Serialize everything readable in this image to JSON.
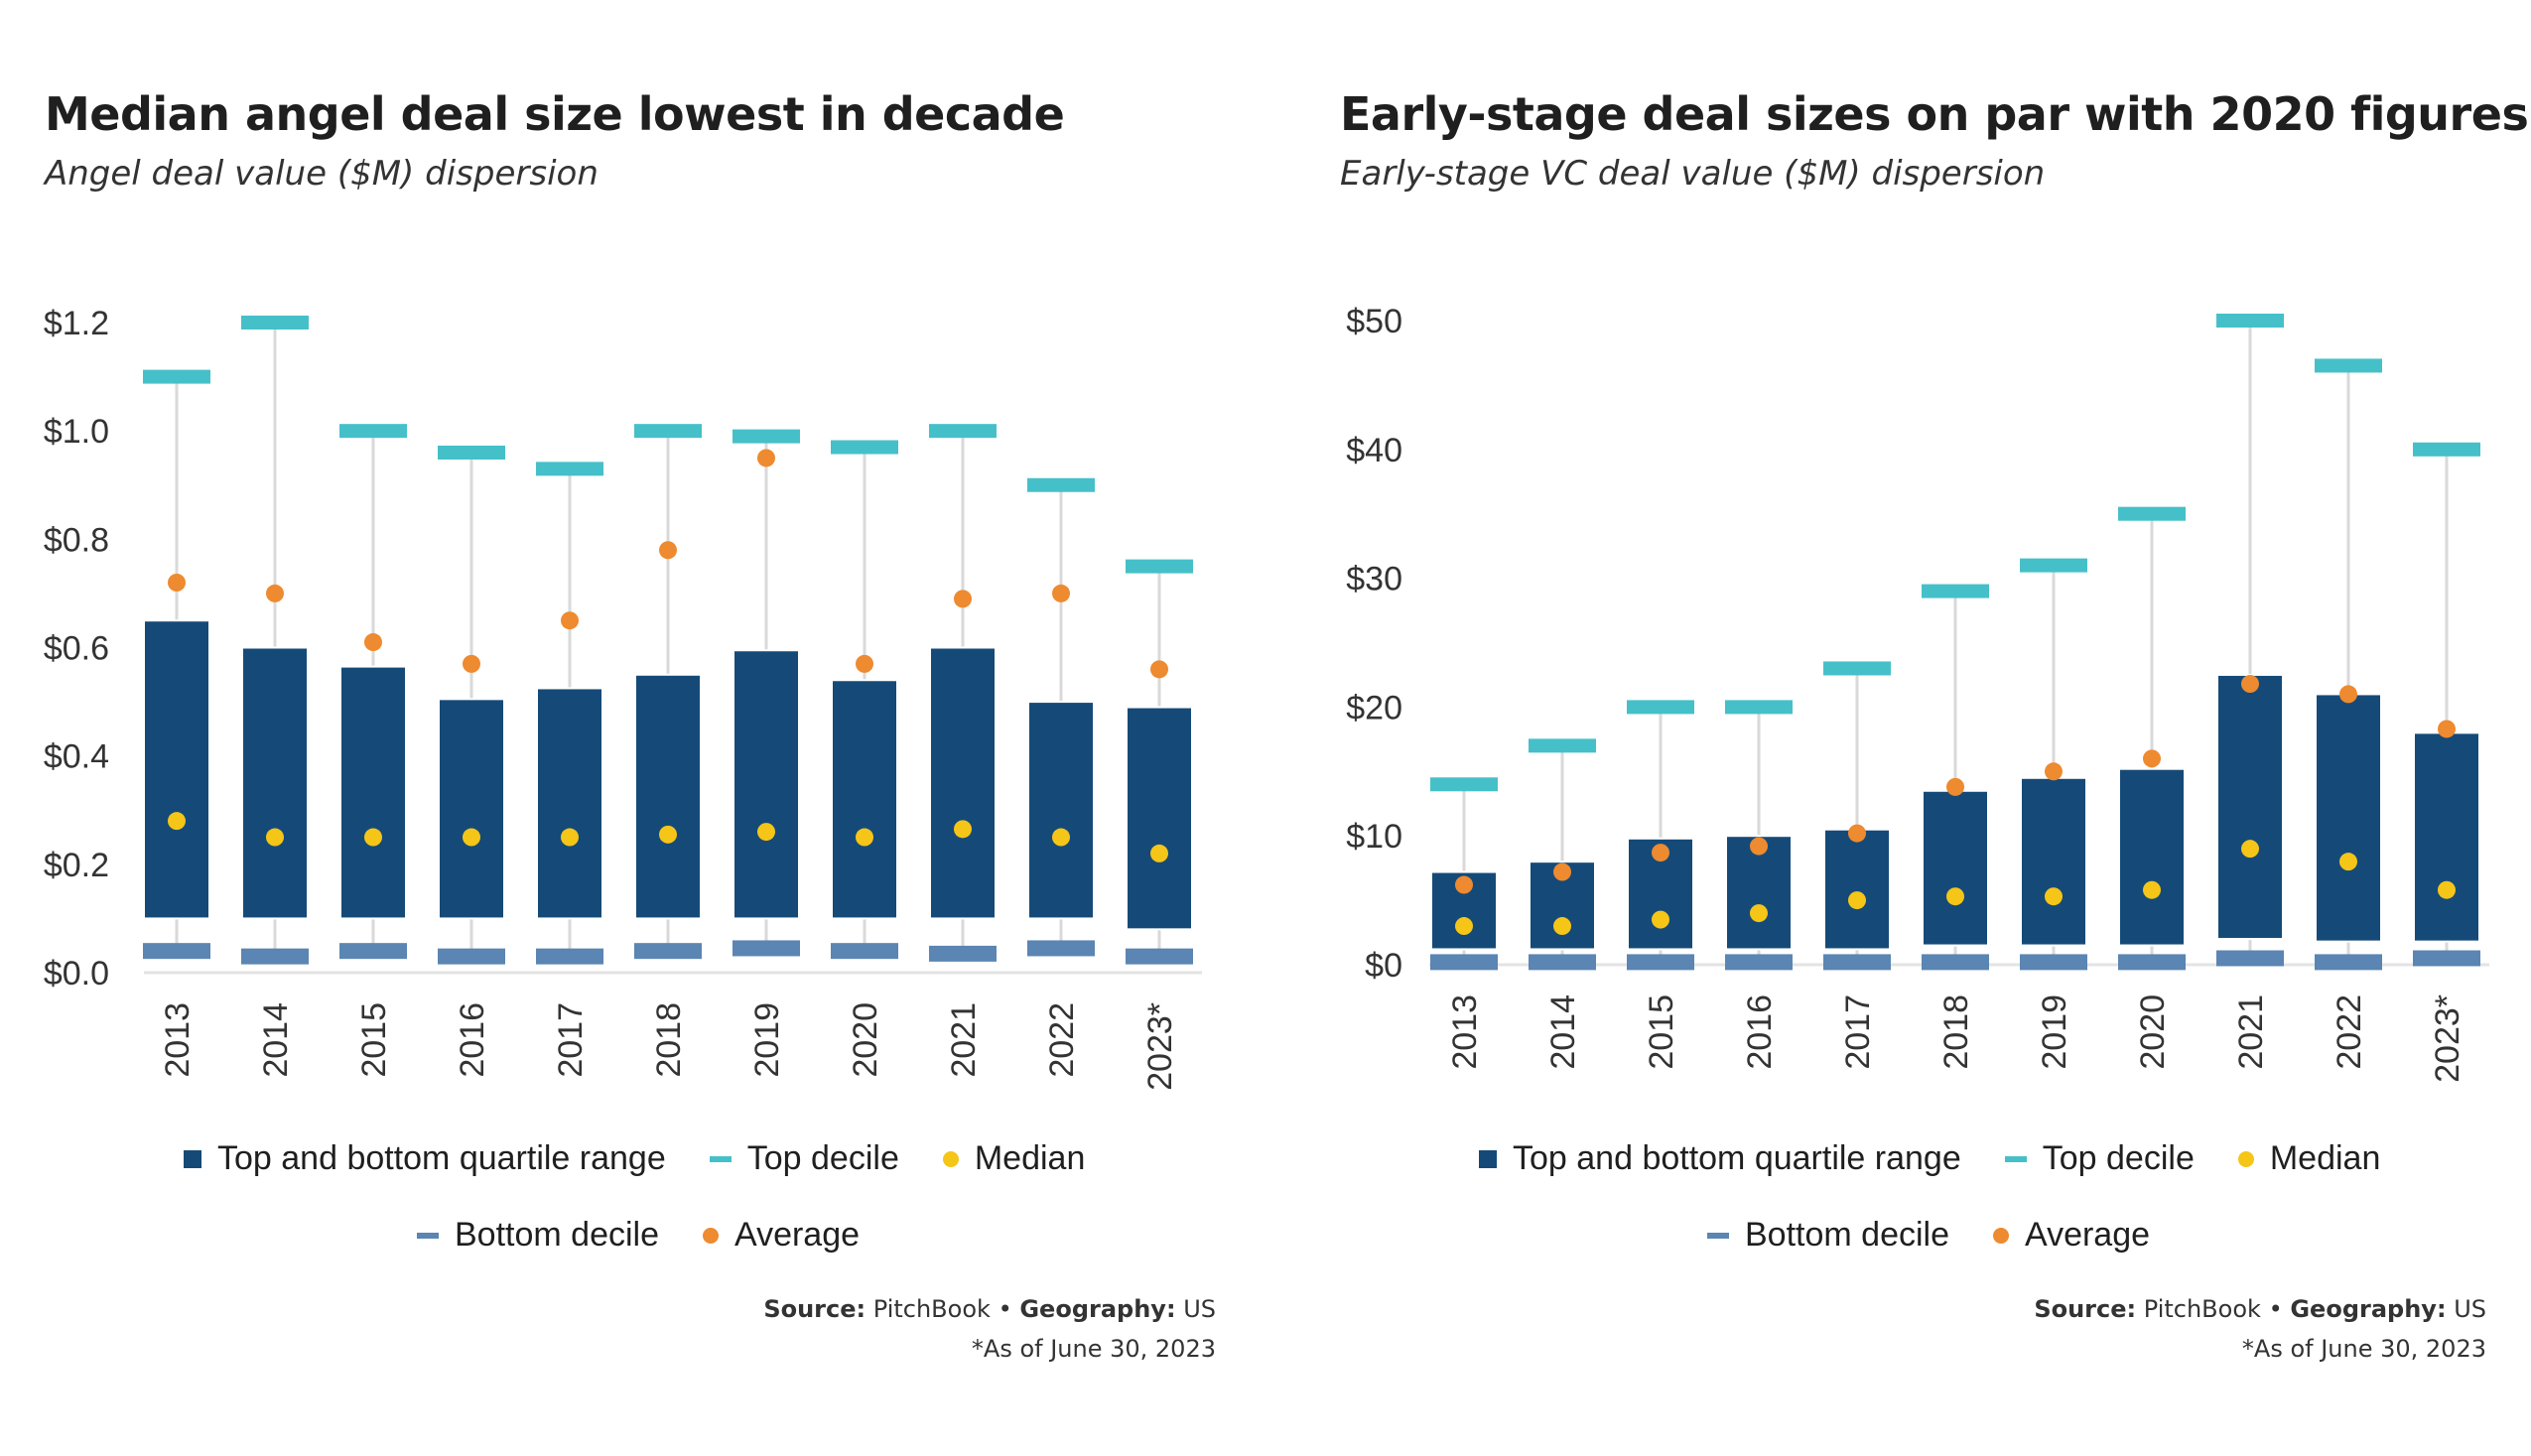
{
  "legend": {
    "quartile": "Top and bottom quartile range",
    "top_decile": "Top decile",
    "median": "Median",
    "bottom_decile": "Bottom decile",
    "average": "Average"
  },
  "footer": {
    "source_label": "Source:",
    "source_value": "PitchBook",
    "separator": "•",
    "geo_label": "Geography:",
    "geo_value": "US",
    "note": "*As of June 30, 2023"
  },
  "colors": {
    "quartile": "#154a78",
    "top_decile": "#45c0c9",
    "bottom_decile": "#5b85b2",
    "median": "#f5c518",
    "average": "#ee8a2f",
    "whisker": "#d9d9d9"
  },
  "chart_data": [
    {
      "type": "boxplot",
      "title": "Median angel deal size lowest in decade",
      "subtitle": "Angel deal value ($M) dispersion",
      "categories": [
        "2013",
        "2014",
        "2015",
        "2016",
        "2017",
        "2018",
        "2019",
        "2020",
        "2021",
        "2022",
        "2023*"
      ],
      "y_ticks": [
        "$0.0",
        "$0.2",
        "$0.4",
        "$0.6",
        "$0.8",
        "$1.0",
        "$1.2"
      ],
      "ylim": [
        0,
        1.2
      ],
      "series": {
        "top_decile": [
          1.1,
          1.2,
          1.0,
          0.96,
          0.93,
          1.0,
          0.99,
          0.97,
          1.0,
          0.9,
          0.75
        ],
        "top_quartile": [
          0.65,
          0.6,
          0.565,
          0.505,
          0.525,
          0.55,
          0.595,
          0.54,
          0.6,
          0.5,
          0.49
        ],
        "bottom_quartile": [
          0.1,
          0.1,
          0.1,
          0.1,
          0.1,
          0.1,
          0.1,
          0.1,
          0.1,
          0.1,
          0.08
        ],
        "bottom_decile": [
          0.04,
          0.03,
          0.04,
          0.03,
          0.03,
          0.04,
          0.045,
          0.04,
          0.035,
          0.045,
          0.03
        ],
        "median": [
          0.28,
          0.25,
          0.25,
          0.25,
          0.25,
          0.255,
          0.26,
          0.25,
          0.265,
          0.25,
          0.22
        ],
        "average": [
          0.72,
          0.7,
          0.61,
          0.57,
          0.65,
          0.78,
          0.95,
          0.57,
          0.69,
          0.7,
          0.56
        ]
      }
    },
    {
      "type": "boxplot",
      "title": "Early-stage deal sizes on par with 2020 figures",
      "subtitle": "Early-stage VC deal value ($M) dispersion",
      "categories": [
        "2013",
        "2014",
        "2015",
        "2016",
        "2017",
        "2018",
        "2019",
        "2020",
        "2021",
        "2022",
        "2023*"
      ],
      "y_ticks": [
        "$0",
        "$10",
        "$20",
        "$30",
        "$40",
        "$50"
      ],
      "ylim": [
        0,
        50
      ],
      "series": {
        "top_decile": [
          14,
          17,
          20,
          20,
          23,
          29,
          31,
          35,
          50,
          46.5,
          40
        ],
        "top_quartile": [
          7.2,
          8.0,
          9.8,
          10.0,
          10.5,
          13.5,
          14.5,
          15.2,
          22.5,
          21.0,
          18.0
        ],
        "bottom_quartile": [
          1.2,
          1.2,
          1.2,
          1.2,
          1.2,
          1.5,
          1.5,
          1.5,
          2.0,
          1.8,
          1.8
        ],
        "bottom_decile": [
          0.2,
          0.2,
          0.2,
          0.2,
          0.2,
          0.2,
          0.2,
          0.2,
          0.5,
          0.2,
          0.5
        ],
        "median": [
          3.0,
          3.0,
          3.5,
          4.0,
          5.0,
          5.3,
          5.3,
          5.8,
          9.0,
          8.0,
          5.8
        ],
        "average": [
          6.2,
          7.2,
          8.7,
          9.2,
          10.2,
          13.8,
          15.0,
          16.0,
          21.8,
          21.0,
          18.3
        ]
      }
    }
  ]
}
